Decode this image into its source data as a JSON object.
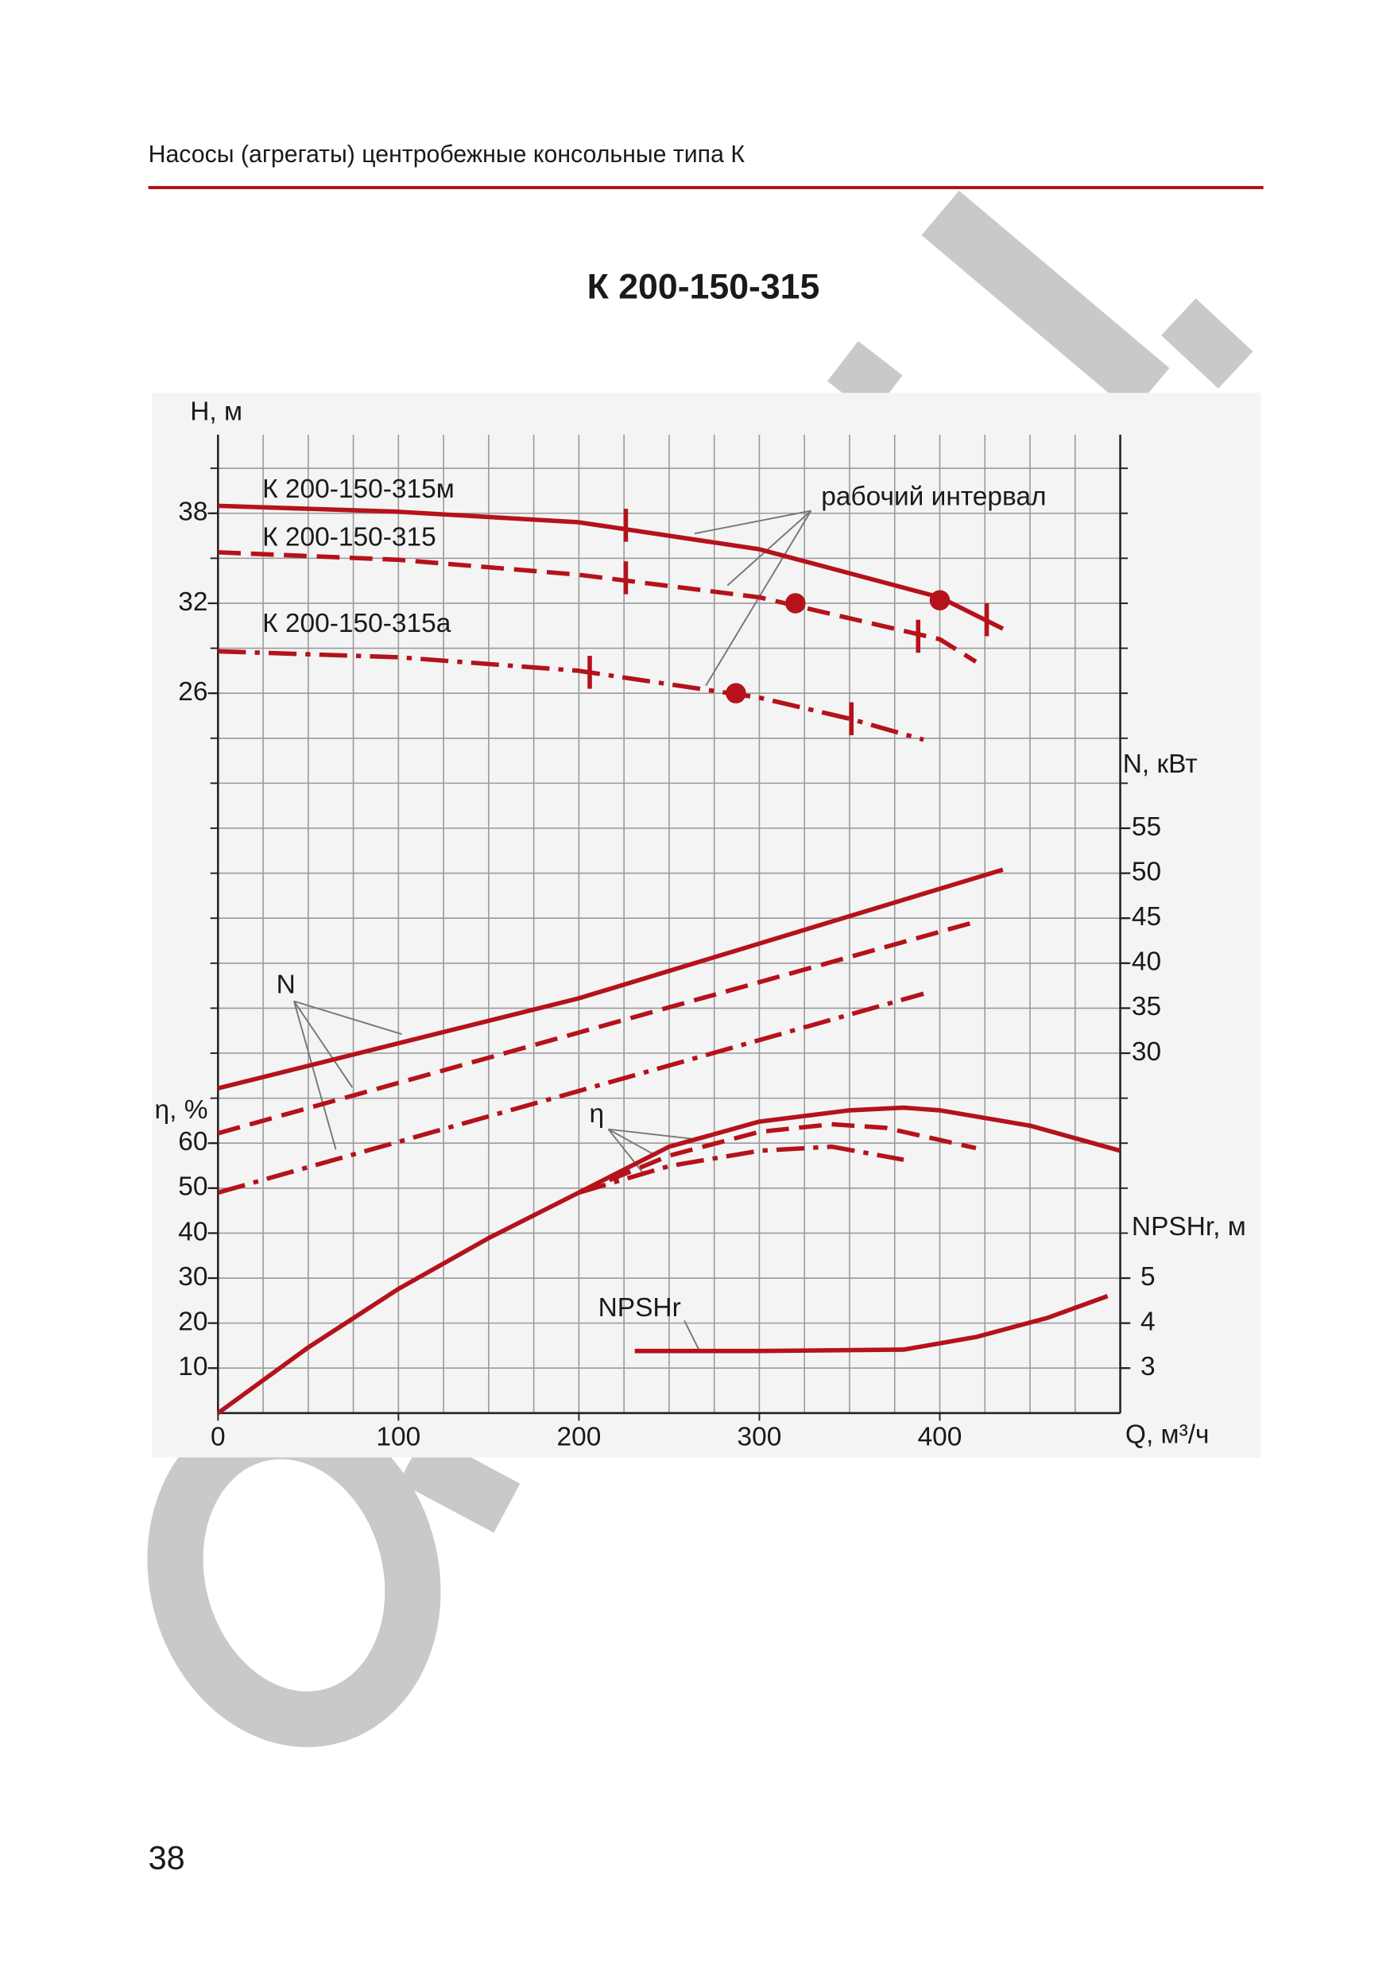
{
  "header": {
    "title": "Насосы (агрегаты) центробежные консольные типа К"
  },
  "page_number": "38",
  "chart_data": {
    "type": "line",
    "title": "К 200-150-315",
    "xlabel": "Q, м³/ч",
    "xlim": [
      0,
      500
    ],
    "xticks": [
      0,
      100,
      200,
      300,
      400
    ],
    "xgrid": [
      25,
      50,
      75,
      100,
      125,
      150,
      175,
      200,
      225,
      250,
      275,
      300,
      325,
      350,
      375,
      400,
      425,
      450,
      475
    ],
    "ygrid": [
      10,
      20,
      30,
      40,
      50,
      60,
      70,
      80,
      90,
      100,
      110,
      120,
      130,
      140,
      150,
      160,
      170,
      180,
      190,
      200,
      210
    ],
    "grid": true,
    "axes": {
      "H": {
        "label": "H, м",
        "side": "left",
        "lim": [
          -22,
          44
        ],
        "ticks": [
          26,
          32,
          38
        ]
      },
      "N": {
        "label": "N, кВт",
        "side": "right",
        "lim": [
          -10,
          100
        ],
        "ticks": [
          30,
          35,
          40,
          45,
          50,
          55
        ]
      },
      "eta": {
        "label": "η, %",
        "side": "left",
        "lim": [
          0,
          220
        ],
        "ticks": [
          10,
          20,
          30,
          40,
          50,
          60
        ]
      },
      "NPSH": {
        "label": "NPSHr, м",
        "side": "right",
        "lim": [
          2,
          24
        ],
        "ticks": [
          3,
          4,
          5
        ]
      }
    },
    "annotations": [
      "рабочий интервал",
      "N",
      "η",
      "NPSHr"
    ],
    "series": [
      {
        "name": "К 200-150-315м",
        "color": "#b5121b",
        "axis": "H",
        "style": "solid",
        "x": [
          0,
          100,
          200,
          300,
          400,
          435
        ],
        "y": [
          38.5,
          38.1,
          37.4,
          35.6,
          32.4,
          30.3
        ],
        "interval": {
          "x": [
            226,
            426
          ],
          "y": [
            37.2,
            30.9
          ]
        },
        "point": {
          "x": 400,
          "y": 32.2
        }
      },
      {
        "name": "К 200-150-315",
        "color": "#b5121b",
        "axis": "H",
        "style": "dashed",
        "x": [
          0,
          100,
          200,
          300,
          400,
          420
        ],
        "y": [
          35.4,
          34.9,
          33.9,
          32.4,
          29.6,
          28.1
        ],
        "interval": {
          "x": [
            226,
            388
          ],
          "y": [
            33.7,
            29.8
          ]
        },
        "point": {
          "x": 320,
          "y": 32.0
        }
      },
      {
        "name": "К 200-150-315а",
        "color": "#b5121b",
        "axis": "H",
        "style": "dashdot",
        "x": [
          0,
          100,
          200,
          300,
          350,
          391
        ],
        "y": [
          28.8,
          28.4,
          27.5,
          25.7,
          24.3,
          22.9
        ],
        "interval": {
          "x": [
            206,
            351
          ],
          "y": [
            27.4,
            24.3
          ]
        },
        "point": {
          "x": 287,
          "y": 26.0
        }
      },
      {
        "color": "#b5121b",
        "axis": "N",
        "style": "solid",
        "x": [
          0,
          200,
          435
        ],
        "y": [
          26.1,
          36.1,
          50.4
        ]
      },
      {
        "color": "#b5121b",
        "axis": "N",
        "style": "dashed",
        "x": [
          0,
          200,
          420
        ],
        "y": [
          21.1,
          32.3,
          44.6
        ]
      },
      {
        "color": "#b5121b",
        "axis": "N",
        "style": "dashdot",
        "x": [
          0,
          200,
          391
        ],
        "y": [
          14.5,
          25.8,
          36.6
        ]
      },
      {
        "color": "#b5121b",
        "axis": "eta",
        "style": "solid",
        "x": [
          0,
          50,
          100,
          150,
          200,
          250,
          300,
          350,
          380,
          400,
          450,
          500
        ],
        "y": [
          0,
          14.6,
          27.6,
          38.9,
          49,
          59.2,
          64.8,
          67.3,
          67.9,
          67.3,
          63.9,
          58.3
        ]
      },
      {
        "color": "#b5121b",
        "axis": "eta",
        "style": "dashed",
        "x": [
          200,
          250,
          300,
          340,
          370,
          420
        ],
        "y": [
          49,
          57.2,
          62.5,
          64.2,
          63.4,
          58.9
        ]
      },
      {
        "color": "#b5121b",
        "axis": "eta",
        "style": "dashdot",
        "x": [
          200,
          250,
          300,
          340,
          380
        ],
        "y": [
          49,
          54.9,
          58.3,
          59.2,
          56.3
        ]
      },
      {
        "color": "#b5121b",
        "axis": "NPSH",
        "style": "solid",
        "x": [
          231,
          300,
          380,
          420,
          460,
          493
        ],
        "y": [
          3.38,
          3.38,
          3.41,
          3.69,
          4.12,
          4.6
        ]
      }
    ]
  }
}
